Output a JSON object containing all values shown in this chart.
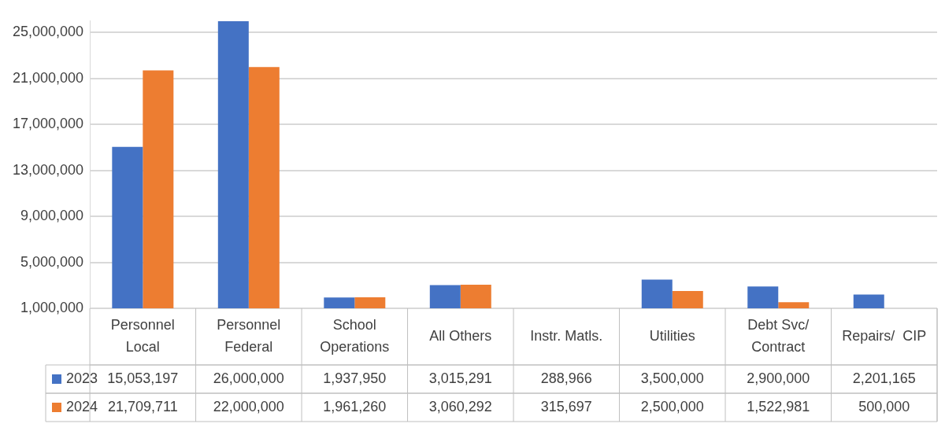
{
  "chart_data": {
    "type": "bar",
    "categories": [
      "Personnel Local",
      "Personnel Federal",
      "School Operations",
      "All Others",
      "Instr. Matls.",
      "Utilities",
      "Debt Svc/ Contract",
      "Repairs/  CIP"
    ],
    "series": [
      {
        "name": "2023",
        "color": "#4472c4",
        "values": [
          15053197,
          26000000,
          1937950,
          3015291,
          null,
          3500000,
          2900000,
          2201165
        ],
        "value_labels": [
          "15,053,197",
          "26,000,000",
          "1,937,950",
          "3,015,291",
          "288,966",
          "3,500,000",
          "2,900,000",
          "2,201,165"
        ]
      },
      {
        "name": "2024",
        "color": "#ed7d31",
        "values": [
          21709711,
          22000000,
          1961260,
          3060292,
          null,
          2500000,
          1522981,
          null
        ],
        "value_labels": [
          "21,709,711",
          "22,000,000",
          "1,961,260",
          "3,060,292",
          "315,697",
          "2,500,000",
          "1,522,981",
          "500,000"
        ]
      }
    ],
    "ylim": [
      1000000,
      26000000
    ],
    "yticks": [
      {
        "value": 1000000,
        "label": "1,000,000"
      },
      {
        "value": 5000000,
        "label": "5,000,000"
      },
      {
        "value": 9000000,
        "label": "9,000,000"
      },
      {
        "value": 13000000,
        "label": "13,000,000"
      },
      {
        "value": 17000000,
        "label": "17,000,000"
      },
      {
        "value": 21000000,
        "label": "21,000,000"
      },
      {
        "value": 25000000,
        "label": "25,000,000"
      }
    ],
    "grid": "y",
    "legend": "bottom"
  }
}
